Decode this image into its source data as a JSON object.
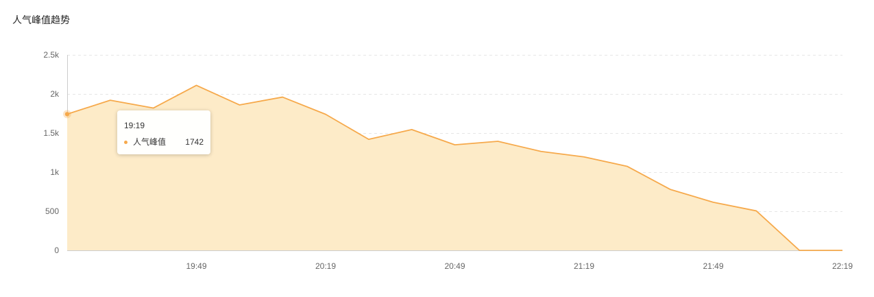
{
  "chart_title": "人气峰值趋势",
  "colors": {
    "line": "#f6a94b",
    "area": "#fdebc8",
    "grid": "#e6e6e6",
    "axis": "#cccccc",
    "text": "#666666"
  },
  "chart_data": {
    "type": "area",
    "title": "人气峰值趋势",
    "xlabel": "",
    "ylabel": "",
    "ylim": [
      0,
      2500
    ],
    "yticks": [
      0,
      500,
      1000,
      1500,
      2000,
      2500
    ],
    "ytick_labels": [
      "0",
      "500",
      "1k",
      "1.5k",
      "2k",
      "2.5k"
    ],
    "x_range": [
      "19:19",
      "22:19"
    ],
    "xtick_labels": [
      "19:49",
      "20:19",
      "20:49",
      "21:19",
      "21:49",
      "22:19"
    ],
    "x": [
      "19:19",
      "19:29",
      "19:39",
      "19:49",
      "19:59",
      "20:09",
      "20:19",
      "20:29",
      "20:39",
      "20:49",
      "20:59",
      "21:09",
      "21:19",
      "21:29",
      "21:39",
      "21:49",
      "21:59",
      "22:09",
      "22:19"
    ],
    "series": [
      {
        "name": "人气峰值",
        "values": [
          1742,
          1920,
          1820,
          2110,
          1860,
          1960,
          1740,
          1420,
          1545,
          1350,
          1395,
          1265,
          1195,
          1075,
          780,
          615,
          505,
          0,
          0
        ]
      }
    ],
    "grid": true,
    "legend": "none"
  },
  "tooltip": {
    "time": "19:19",
    "series_name": "人气峰值",
    "value": "1742"
  }
}
